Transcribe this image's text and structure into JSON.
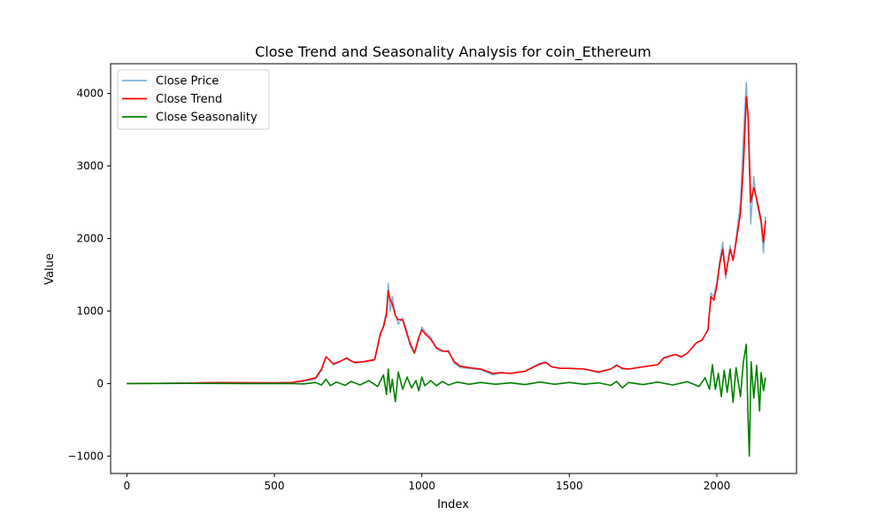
{
  "chart_data": {
    "type": "line",
    "title": "Close Trend and Seasonality Analysis for coin_Ethereum",
    "xlabel": "Index",
    "ylabel": "Value",
    "xlim": [
      -55,
      2270
    ],
    "ylim": [
      -1240,
      4410
    ],
    "xticks": [
      0,
      500,
      1000,
      1500,
      2000
    ],
    "yticks": [
      -1000,
      0,
      1000,
      2000,
      3000,
      4000
    ],
    "legend_position": "upper-left",
    "grid": false,
    "series": [
      {
        "name": "Close Price",
        "color": "#7fb0d8",
        "points": [
          [
            0,
            1
          ],
          [
            100,
            1
          ],
          [
            200,
            5
          ],
          [
            250,
            10
          ],
          [
            300,
            13
          ],
          [
            400,
            12
          ],
          [
            500,
            10
          ],
          [
            560,
            14
          ],
          [
            600,
            30
          ],
          [
            640,
            60
          ],
          [
            660,
            180
          ],
          [
            675,
            360
          ],
          [
            685,
            340
          ],
          [
            700,
            260
          ],
          [
            720,
            290
          ],
          [
            745,
            360
          ],
          [
            760,
            320
          ],
          [
            775,
            280
          ],
          [
            800,
            300
          ],
          [
            840,
            320
          ],
          [
            860,
            680
          ],
          [
            870,
            800
          ],
          [
            880,
            1000
          ],
          [
            886,
            1380
          ],
          [
            893,
            1000
          ],
          [
            900,
            1200
          ],
          [
            910,
            950
          ],
          [
            920,
            820
          ],
          [
            935,
            900
          ],
          [
            950,
            720
          ],
          [
            960,
            520
          ],
          [
            975,
            420
          ],
          [
            990,
            620
          ],
          [
            1000,
            780
          ],
          [
            1010,
            720
          ],
          [
            1030,
            640
          ],
          [
            1050,
            480
          ],
          [
            1070,
            440
          ],
          [
            1090,
            460
          ],
          [
            1110,
            280
          ],
          [
            1130,
            220
          ],
          [
            1160,
            210
          ],
          [
            1200,
            190
          ],
          [
            1240,
            120
          ],
          [
            1270,
            150
          ],
          [
            1300,
            140
          ],
          [
            1350,
            170
          ],
          [
            1400,
            280
          ],
          [
            1420,
            300
          ],
          [
            1440,
            230
          ],
          [
            1470,
            210
          ],
          [
            1500,
            210
          ],
          [
            1550,
            200
          ],
          [
            1600,
            150
          ],
          [
            1640,
            200
          ],
          [
            1660,
            260
          ],
          [
            1680,
            200
          ],
          [
            1700,
            200
          ],
          [
            1750,
            230
          ],
          [
            1800,
            260
          ],
          [
            1820,
            360
          ],
          [
            1840,
            380
          ],
          [
            1860,
            400
          ],
          [
            1880,
            360
          ],
          [
            1900,
            420
          ],
          [
            1930,
            560
          ],
          [
            1950,
            600
          ],
          [
            1970,
            740
          ],
          [
            1980,
            1250
          ],
          [
            1990,
            1200
          ],
          [
            2000,
            1400
          ],
          [
            2010,
            1700
          ],
          [
            2020,
            1950
          ],
          [
            2030,
            1450
          ],
          [
            2045,
            1900
          ],
          [
            2055,
            1700
          ],
          [
            2065,
            2000
          ],
          [
            2080,
            2500
          ],
          [
            2090,
            3400
          ],
          [
            2100,
            4150
          ],
          [
            2106,
            3600
          ],
          [
            2115,
            2200
          ],
          [
            2125,
            2850
          ],
          [
            2135,
            2500
          ],
          [
            2150,
            2200
          ],
          [
            2158,
            1800
          ],
          [
            2165,
            2300
          ]
        ]
      },
      {
        "name": "Close Trend",
        "color": "#ff0000",
        "points": [
          [
            0,
            1
          ],
          [
            100,
            2
          ],
          [
            200,
            6
          ],
          [
            250,
            10
          ],
          [
            300,
            13
          ],
          [
            400,
            12
          ],
          [
            500,
            11
          ],
          [
            560,
            15
          ],
          [
            600,
            40
          ],
          [
            640,
            80
          ],
          [
            660,
            200
          ],
          [
            675,
            370
          ],
          [
            685,
            330
          ],
          [
            700,
            270
          ],
          [
            720,
            300
          ],
          [
            745,
            350
          ],
          [
            760,
            310
          ],
          [
            775,
            290
          ],
          [
            800,
            300
          ],
          [
            840,
            330
          ],
          [
            860,
            700
          ],
          [
            870,
            780
          ],
          [
            880,
            950
          ],
          [
            886,
            1280
          ],
          [
            893,
            1150
          ],
          [
            900,
            1100
          ],
          [
            910,
            940
          ],
          [
            920,
            880
          ],
          [
            935,
            880
          ],
          [
            950,
            680
          ],
          [
            960,
            560
          ],
          [
            975,
            420
          ],
          [
            990,
            640
          ],
          [
            1000,
            740
          ],
          [
            1010,
            690
          ],
          [
            1030,
            610
          ],
          [
            1050,
            490
          ],
          [
            1070,
            450
          ],
          [
            1090,
            440
          ],
          [
            1110,
            300
          ],
          [
            1130,
            240
          ],
          [
            1160,
            220
          ],
          [
            1200,
            200
          ],
          [
            1240,
            140
          ],
          [
            1270,
            150
          ],
          [
            1300,
            140
          ],
          [
            1350,
            170
          ],
          [
            1400,
            270
          ],
          [
            1420,
            290
          ],
          [
            1440,
            230
          ],
          [
            1470,
            210
          ],
          [
            1500,
            210
          ],
          [
            1550,
            200
          ],
          [
            1600,
            160
          ],
          [
            1640,
            200
          ],
          [
            1660,
            250
          ],
          [
            1680,
            210
          ],
          [
            1700,
            200
          ],
          [
            1750,
            230
          ],
          [
            1800,
            260
          ],
          [
            1820,
            350
          ],
          [
            1840,
            380
          ],
          [
            1860,
            400
          ],
          [
            1880,
            370
          ],
          [
            1900,
            420
          ],
          [
            1930,
            560
          ],
          [
            1950,
            600
          ],
          [
            1970,
            740
          ],
          [
            1980,
            1200
          ],
          [
            1990,
            1150
          ],
          [
            2000,
            1350
          ],
          [
            2010,
            1650
          ],
          [
            2020,
            1850
          ],
          [
            2030,
            1500
          ],
          [
            2045,
            1850
          ],
          [
            2055,
            1700
          ],
          [
            2065,
            1950
          ],
          [
            2080,
            2350
          ],
          [
            2090,
            3000
          ],
          [
            2100,
            3950
          ],
          [
            2106,
            3700
          ],
          [
            2115,
            2500
          ],
          [
            2125,
            2700
          ],
          [
            2135,
            2550
          ],
          [
            2150,
            2250
          ],
          [
            2158,
            1950
          ],
          [
            2165,
            2250
          ]
        ]
      },
      {
        "name": "Close Seasonality",
        "color": "#008000",
        "points": [
          [
            0,
            0
          ],
          [
            200,
            2
          ],
          [
            400,
            0
          ],
          [
            550,
            1
          ],
          [
            600,
            -5
          ],
          [
            640,
            15
          ],
          [
            660,
            -20
          ],
          [
            675,
            60
          ],
          [
            690,
            -30
          ],
          [
            710,
            20
          ],
          [
            740,
            -25
          ],
          [
            760,
            30
          ],
          [
            790,
            -20
          ],
          [
            820,
            40
          ],
          [
            850,
            -40
          ],
          [
            870,
            120
          ],
          [
            880,
            -150
          ],
          [
            886,
            200
          ],
          [
            893,
            -120
          ],
          [
            900,
            60
          ],
          [
            910,
            -250
          ],
          [
            920,
            160
          ],
          [
            935,
            -80
          ],
          [
            950,
            90
          ],
          [
            965,
            -60
          ],
          [
            980,
            40
          ],
          [
            990,
            -100
          ],
          [
            1000,
            90
          ],
          [
            1010,
            -30
          ],
          [
            1030,
            40
          ],
          [
            1050,
            -30
          ],
          [
            1070,
            30
          ],
          [
            1090,
            -20
          ],
          [
            1120,
            20
          ],
          [
            1160,
            -10
          ],
          [
            1200,
            15
          ],
          [
            1250,
            -10
          ],
          [
            1300,
            10
          ],
          [
            1350,
            -15
          ],
          [
            1400,
            20
          ],
          [
            1450,
            -10
          ],
          [
            1500,
            15
          ],
          [
            1550,
            -10
          ],
          [
            1600,
            10
          ],
          [
            1640,
            -25
          ],
          [
            1660,
            30
          ],
          [
            1680,
            -60
          ],
          [
            1700,
            15
          ],
          [
            1750,
            -15
          ],
          [
            1800,
            20
          ],
          [
            1850,
            -20
          ],
          [
            1900,
            25
          ],
          [
            1940,
            -40
          ],
          [
            1960,
            80
          ],
          [
            1975,
            -80
          ],
          [
            1985,
            260
          ],
          [
            1995,
            -80
          ],
          [
            2005,
            140
          ],
          [
            2015,
            -180
          ],
          [
            2025,
            180
          ],
          [
            2035,
            -120
          ],
          [
            2045,
            200
          ],
          [
            2055,
            -260
          ],
          [
            2065,
            220
          ],
          [
            2080,
            -180
          ],
          [
            2090,
            300
          ],
          [
            2100,
            540
          ],
          [
            2106,
            -500
          ],
          [
            2110,
            -1000
          ],
          [
            2116,
            300
          ],
          [
            2125,
            -200
          ],
          [
            2135,
            250
          ],
          [
            2145,
            -380
          ],
          [
            2150,
            150
          ],
          [
            2158,
            -100
          ],
          [
            2165,
            80
          ]
        ]
      }
    ]
  }
}
